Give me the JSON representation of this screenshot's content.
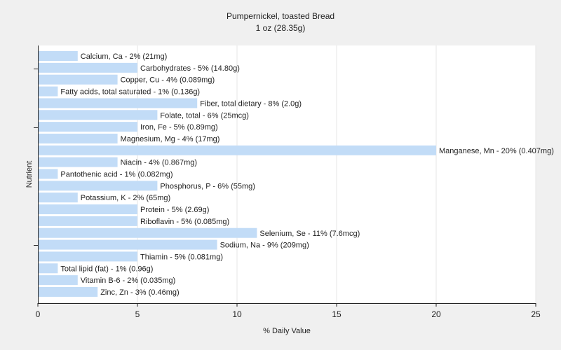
{
  "chart_data": {
    "type": "bar",
    "orientation": "horizontal",
    "title": "Pumpernickel, toasted Bread",
    "subtitle": "1 oz (28.35g)",
    "xlabel": "% Daily Value",
    "ylabel": "Nutrient",
    "xlim": [
      0,
      25
    ],
    "xticks": [
      0,
      5,
      10,
      15,
      20,
      25
    ],
    "grid": true,
    "bar_color": "#c2dcf7",
    "series": [
      {
        "values": [
          2,
          5,
          4,
          1,
          8,
          6,
          5,
          4,
          20,
          4,
          1,
          6,
          2,
          5,
          5,
          11,
          9,
          5,
          1,
          2,
          3
        ]
      }
    ],
    "categories": [
      "Calcium, Ca",
      "Carbohydrates",
      "Copper, Cu",
      "Fatty acids, total saturated",
      "Fiber, total dietary",
      "Folate, total",
      "Iron, Fe",
      "Magnesium, Mg",
      "Manganese, Mn",
      "Niacin",
      "Pantothenic acid",
      "Phosphorus, P",
      "Potassium, K",
      "Protein",
      "Riboflavin",
      "Selenium, Se",
      "Sodium, Na",
      "Thiamin",
      "Total lipid (fat)",
      "Vitamin B-6",
      "Zinc, Zn"
    ],
    "bar_labels": [
      "Calcium, Ca - 2% (21mg)",
      "Carbohydrates - 5% (14.80g)",
      "Copper, Cu - 4% (0.089mg)",
      "Fatty acids, total saturated - 1% (0.136g)",
      "Fiber, total dietary - 8% (2.0g)",
      "Folate, total - 6% (25mcg)",
      "Iron, Fe - 5% (0.89mg)",
      "Magnesium, Mg - 4% (17mg)",
      "Manganese, Mn - 20% (0.407mg)",
      "Niacin - 4% (0.867mg)",
      "Pantothenic acid - 1% (0.082mg)",
      "Phosphorus, P - 6% (55mg)",
      "Potassium, K - 2% (65mg)",
      "Protein - 5% (2.69g)",
      "Riboflavin - 5% (0.085mg)",
      "Selenium, Se - 11% (7.6mcg)",
      "Sodium, Na - 9% (209mg)",
      "Thiamin - 5% (0.081mg)",
      "Total lipid (fat) - 1% (0.96g)",
      "Vitamin B-6 - 2% (0.035mg)",
      "Zinc, Zn - 3% (0.46mg)"
    ]
  }
}
